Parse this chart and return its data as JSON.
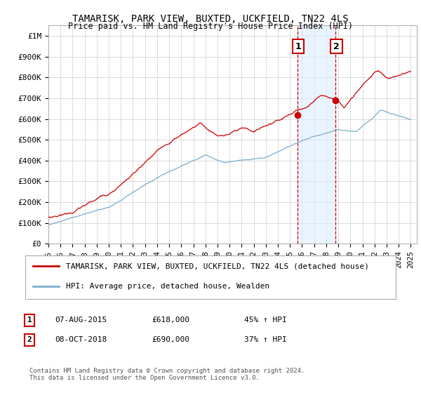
{
  "title": "TAMARISK, PARK VIEW, BUXTED, UCKFIELD, TN22 4LS",
  "subtitle": "Price paid vs. HM Land Registry's House Price Index (HPI)",
  "ylim": [
    0,
    1050000
  ],
  "xlim_start": 1995.0,
  "xlim_end": 2025.5,
  "yticks": [
    0,
    100000,
    200000,
    300000,
    400000,
    500000,
    600000,
    700000,
    800000,
    900000,
    1000000
  ],
  "ytick_labels": [
    "£0",
    "£100K",
    "£200K",
    "£300K",
    "£400K",
    "£500K",
    "£600K",
    "£700K",
    "£800K",
    "£900K",
    "£1M"
  ],
  "xtick_years": [
    1995,
    1996,
    1997,
    1998,
    1999,
    2000,
    2001,
    2002,
    2003,
    2004,
    2005,
    2006,
    2007,
    2008,
    2009,
    2010,
    2011,
    2012,
    2013,
    2014,
    2015,
    2016,
    2017,
    2018,
    2019,
    2020,
    2021,
    2022,
    2023,
    2024,
    2025
  ],
  "line1_color": "#cc0000",
  "line2_color": "#7aadcc",
  "line1_label": "TAMARISK, PARK VIEW, BUXTED, UCKFIELD, TN22 4LS (detached house)",
  "line2_label": "HPI: Average price, detached house, Wealden",
  "sale1_x": 2015.6,
  "sale1_y": 618000,
  "sale1_label": "1",
  "sale1_date": "07-AUG-2015",
  "sale1_price": "£618,000",
  "sale1_hpi": "45% ↑ HPI",
  "sale2_x": 2018.77,
  "sale2_y": 690000,
  "sale2_label": "2",
  "sale2_date": "08-OCT-2018",
  "sale2_price": "£690,000",
  "sale2_hpi": "37% ↑ HPI",
  "shade_color": "#ddeeff",
  "vline_color": "#cc0000",
  "footnote": "Contains HM Land Registry data © Crown copyright and database right 2024.\nThis data is licensed under the Open Government Licence v3.0.",
  "background_color": "#ffffff",
  "grid_color": "#cccccc"
}
